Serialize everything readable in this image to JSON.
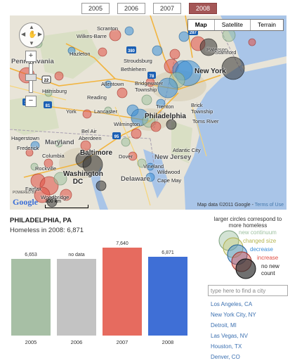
{
  "years": [
    "2005",
    "2006",
    "2007",
    "2008"
  ],
  "active_year": "2008",
  "map": {
    "types": [
      "Map",
      "Satellite",
      "Terrain"
    ],
    "selected_type": "Map",
    "states": [
      "Pennsylvania",
      "Maryland",
      "New Jersey",
      "Delaware"
    ],
    "cities": [
      "Scranton",
      "Wilkes-Barre",
      "Hazleton",
      "Stroudsburg",
      "Paterson",
      "Stamford",
      "New York",
      "Bethlehem",
      "Allentown",
      "Bridgewater Township",
      "Harrisburg",
      "Reading",
      "Trenton",
      "Brick Township",
      "Toms River",
      "York",
      "Lancaster",
      "Philadelphia",
      "Wilmington",
      "Bel Air",
      "Aberdeen",
      "Hagerstown",
      "Frederick",
      "Baltimore",
      "Columbia",
      "Rockville",
      "Washington DC",
      "Dover",
      "Atlantic City",
      "Vineland",
      "Wildwood",
      "Cape May",
      "Fairfax",
      "Woodbridge"
    ],
    "highway_shields": [
      "22",
      "76",
      "81",
      "380",
      "287",
      "78",
      "95"
    ],
    "scale_label": "100 km",
    "attribution": "Map data ©2011 Google - ",
    "terms": "Terms of Use",
    "logo_powered": "POWERED BY",
    "logo": "Google"
  },
  "info": {
    "city": "PHILADELPHIA, PA",
    "homeless_label": "Homeless in 2008: 6,871"
  },
  "chart_data": {
    "type": "bar",
    "categories": [
      "2005",
      "2006",
      "2007",
      "2008"
    ],
    "values": [
      6653,
      null,
      7640,
      6871
    ],
    "value_labels": [
      "6,653",
      "no data",
      "7,640",
      "6,871"
    ],
    "colors": [
      "#a7bfa5",
      "#c3c3c3",
      "#e66b5f",
      "#3f6fd6"
    ],
    "ylim": [
      0,
      7640
    ]
  },
  "legend": {
    "title": "larger circles correspond to more homeless",
    "items": [
      {
        "label": "new continuum",
        "color": "#9ec1a0"
      },
      {
        "label": "changed size",
        "color": "#c9c96a"
      },
      {
        "label": "decrease",
        "color": "#3b8fd9"
      },
      {
        "label": "increase",
        "color": "#e04e44"
      },
      {
        "label": "no new count",
        "color": "#333333"
      }
    ]
  },
  "search": {
    "placeholder": "type here to find a city"
  },
  "city_list": [
    "Los Angeles, CA",
    "New York City, NY",
    "Detroit, MI",
    "Las Vegas, NV",
    "Houston, TX",
    "Denver, CO"
  ]
}
